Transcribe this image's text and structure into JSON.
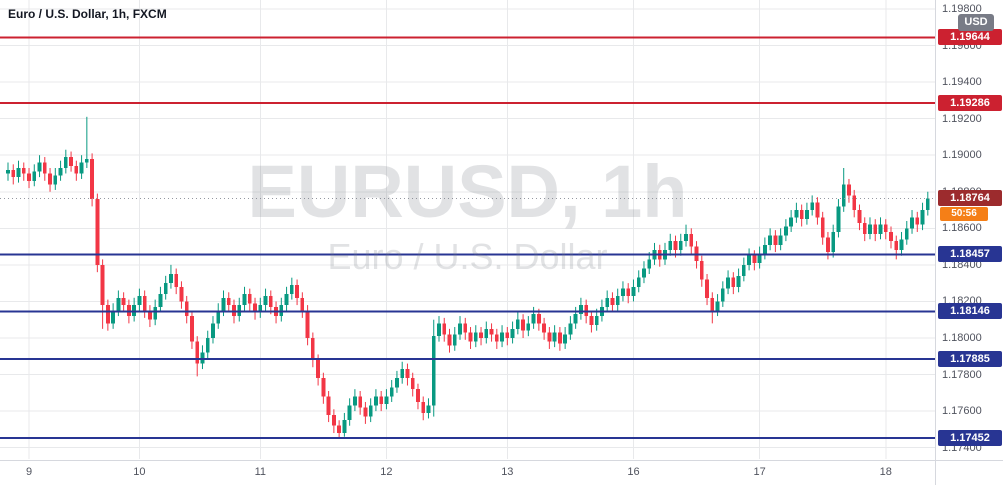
{
  "legend": {
    "title": "Euro / U.S. Dollar, 1h, FXCM"
  },
  "watermark": {
    "title": "EURUSD, 1h",
    "subtitle": "Euro / U.S. Dollar"
  },
  "price_axis": {
    "currency_label": "USD",
    "tick_labels": [
      "1.19800",
      "1.19600",
      "1.19400",
      "1.19200",
      "1.19000",
      "1.18800",
      "1.18600",
      "1.18400",
      "1.18200",
      "1.18000",
      "1.17800",
      "1.17600",
      "1.17400"
    ]
  },
  "levels": [
    {
      "price": 1.19644,
      "label": "1.19644",
      "type": "resistance"
    },
    {
      "price": 1.19286,
      "label": "1.19286",
      "type": "resistance"
    },
    {
      "price": 1.18457,
      "label": "1.18457",
      "type": "support"
    },
    {
      "price": 1.18146,
      "label": "1.18146",
      "type": "support"
    },
    {
      "price": 1.17885,
      "label": "1.17885",
      "type": "support"
    },
    {
      "price": 1.17452,
      "label": "1.17452",
      "type": "support"
    }
  ],
  "last_price": {
    "value": 1.18764,
    "label": "1.18764",
    "countdown": "50:56"
  },
  "colors": {
    "up": "#089981",
    "down": "#f23645",
    "resistance_line": "#cc2130",
    "support_line": "#283593",
    "last_price_badge": "#9c2b2d",
    "countdown_badge": "#f57f17",
    "currency_badge": "#787b86",
    "grid": "#e8e9eb",
    "axis_text": "#50535e",
    "last_price_line": "#9598a1"
  },
  "chart_data": {
    "type": "candlestick",
    "symbol": "EURUSD",
    "interval": "1h",
    "provider": "FXCM",
    "title": "Euro / U.S. Dollar, 1h, FXCM",
    "y_domain": [
      1.17338,
      1.19849
    ],
    "price_ticks": [
      1.198,
      1.196,
      1.194,
      1.192,
      1.19,
      1.188,
      1.186,
      1.184,
      1.182,
      1.18,
      1.178,
      1.176,
      1.174
    ],
    "time_ticks": [
      {
        "label": "9",
        "index": 4
      },
      {
        "label": "10",
        "index": 25
      },
      {
        "label": "11",
        "index": 48
      },
      {
        "label": "12",
        "index": 72
      },
      {
        "label": "13",
        "index": 95
      },
      {
        "label": "16",
        "index": 119
      },
      {
        "label": "17",
        "index": 143
      },
      {
        "label": "18",
        "index": 167
      }
    ],
    "price_scale": 100000,
    "candles": [
      [
        118900,
        118960,
        118860,
        118920
      ],
      [
        118920,
        118950,
        118840,
        118880
      ],
      [
        118880,
        118970,
        118850,
        118930
      ],
      [
        118930,
        118960,
        118860,
        118900
      ],
      [
        118900,
        118930,
        118820,
        118860
      ],
      [
        118860,
        118950,
        118830,
        118910
      ],
      [
        118910,
        119000,
        118880,
        118960
      ],
      [
        118960,
        118990,
        118860,
        118900
      ],
      [
        118900,
        118930,
        118800,
        118840
      ],
      [
        118840,
        118930,
        118810,
        118890
      ],
      [
        118890,
        118970,
        118860,
        118930
      ],
      [
        118930,
        119030,
        118900,
        118990
      ],
      [
        118990,
        119020,
        118910,
        118940
      ],
      [
        118940,
        118970,
        118860,
        118900
      ],
      [
        118900,
        119000,
        118870,
        118960
      ],
      [
        118960,
        119210,
        118930,
        118980
      ],
      [
        118980,
        119010,
        118720,
        118760
      ],
      [
        118760,
        118790,
        118360,
        118400
      ],
      [
        118400,
        118430,
        118050,
        118180
      ],
      [
        118180,
        118210,
        118040,
        118080
      ],
      [
        118080,
        118190,
        118050,
        118150
      ],
      [
        118150,
        118260,
        118120,
        118220
      ],
      [
        118220,
        118250,
        118140,
        118180
      ],
      [
        118180,
        118210,
        118080,
        118120
      ],
      [
        118120,
        118220,
        118090,
        118180
      ],
      [
        118180,
        118270,
        118150,
        118230
      ],
      [
        118230,
        118260,
        118110,
        118150
      ],
      [
        118150,
        118180,
        118060,
        118100
      ],
      [
        118100,
        118210,
        118070,
        118170
      ],
      [
        118170,
        118280,
        118140,
        118240
      ],
      [
        118240,
        118340,
        118210,
        118300
      ],
      [
        118300,
        118400,
        118270,
        118350
      ],
      [
        118350,
        118380,
        118240,
        118280
      ],
      [
        118280,
        118310,
        118160,
        118200
      ],
      [
        118200,
        118230,
        118080,
        118120
      ],
      [
        118120,
        118150,
        117940,
        117980
      ],
      [
        117980,
        118010,
        117790,
        117860
      ],
      [
        117860,
        117960,
        117830,
        117920
      ],
      [
        117920,
        118040,
        117890,
        118000
      ],
      [
        118000,
        118120,
        117970,
        118080
      ],
      [
        118080,
        118190,
        118050,
        118150
      ],
      [
        118150,
        118260,
        118120,
        118220
      ],
      [
        118220,
        118250,
        118140,
        118180
      ],
      [
        118180,
        118210,
        118080,
        118120
      ],
      [
        118120,
        118220,
        118090,
        118180
      ],
      [
        118180,
        118280,
        118150,
        118240
      ],
      [
        118240,
        118270,
        118150,
        118190
      ],
      [
        118190,
        118220,
        118100,
        118140
      ],
      [
        118140,
        118220,
        118110,
        118180
      ],
      [
        118180,
        118270,
        118150,
        118230
      ],
      [
        118230,
        118260,
        118130,
        118170
      ],
      [
        118170,
        118200,
        118080,
        118120
      ],
      [
        118120,
        118220,
        118090,
        118180
      ],
      [
        118180,
        118280,
        118150,
        118240
      ],
      [
        118240,
        118330,
        118210,
        118290
      ],
      [
        118290,
        118320,
        118180,
        118220
      ],
      [
        118220,
        118250,
        118110,
        118150
      ],
      [
        118150,
        118180,
        117960,
        118000
      ],
      [
        118000,
        118030,
        117840,
        117880
      ],
      [
        117880,
        117910,
        117740,
        117780
      ],
      [
        117780,
        117810,
        117640,
        117680
      ],
      [
        117680,
        117710,
        117540,
        117580
      ],
      [
        117580,
        117610,
        117480,
        117520
      ],
      [
        117520,
        117550,
        117450,
        117480
      ],
      [
        117480,
        117590,
        117460,
        117550
      ],
      [
        117550,
        117670,
        117520,
        117630
      ],
      [
        117630,
        117720,
        117600,
        117680
      ],
      [
        117680,
        117710,
        117580,
        117620
      ],
      [
        117620,
        117650,
        117530,
        117570
      ],
      [
        117570,
        117670,
        117540,
        117630
      ],
      [
        117630,
        117720,
        117600,
        117680
      ],
      [
        117680,
        117710,
        117600,
        117640
      ],
      [
        117640,
        117720,
        117610,
        117680
      ],
      [
        117680,
        117770,
        117650,
        117730
      ],
      [
        117730,
        117820,
        117700,
        117780
      ],
      [
        117780,
        117870,
        117750,
        117830
      ],
      [
        117830,
        117860,
        117740,
        117780
      ],
      [
        117780,
        117810,
        117680,
        117720
      ],
      [
        117720,
        117750,
        117610,
        117650
      ],
      [
        117650,
        117680,
        117550,
        117590
      ],
      [
        117590,
        117670,
        117560,
        117630
      ],
      [
        117630,
        118100,
        117570,
        118010
      ],
      [
        118010,
        118120,
        117980,
        118080
      ],
      [
        118080,
        118110,
        117980,
        118020
      ],
      [
        118020,
        118050,
        117920,
        117960
      ],
      [
        117960,
        118060,
        117930,
        118020
      ],
      [
        118020,
        118120,
        117990,
        118080
      ],
      [
        118080,
        118110,
        117990,
        118030
      ],
      [
        118030,
        118060,
        117940,
        117980
      ],
      [
        117980,
        118070,
        117950,
        118030
      ],
      [
        118030,
        118060,
        117960,
        118000
      ],
      [
        118000,
        118090,
        117970,
        118050
      ],
      [
        118050,
        118080,
        117980,
        118020
      ],
      [
        118020,
        118050,
        117940,
        117980
      ],
      [
        117980,
        118070,
        117950,
        118030
      ],
      [
        118030,
        118060,
        117960,
        118000
      ],
      [
        118000,
        118090,
        117970,
        118050
      ],
      [
        118050,
        118140,
        118020,
        118100
      ],
      [
        118100,
        118130,
        118000,
        118040
      ],
      [
        118040,
        118120,
        118010,
        118080
      ],
      [
        118080,
        118170,
        118050,
        118130
      ],
      [
        118130,
        118160,
        118040,
        118080
      ],
      [
        118080,
        118110,
        117990,
        118030
      ],
      [
        118030,
        118060,
        117940,
        117980
      ],
      [
        117980,
        118070,
        117950,
        118030
      ],
      [
        118030,
        118060,
        117930,
        117970
      ],
      [
        117970,
        118060,
        117940,
        118020
      ],
      [
        118020,
        118120,
        117990,
        118080
      ],
      [
        118080,
        118170,
        118050,
        118130
      ],
      [
        118130,
        118220,
        118100,
        118180
      ],
      [
        118180,
        118210,
        118080,
        118120
      ],
      [
        118120,
        118150,
        118030,
        118070
      ],
      [
        118070,
        118160,
        118040,
        118120
      ],
      [
        118120,
        118210,
        118090,
        118170
      ],
      [
        118170,
        118260,
        118140,
        118220
      ],
      [
        118220,
        118250,
        118140,
        118180
      ],
      [
        118180,
        118270,
        118150,
        118230
      ],
      [
        118230,
        118310,
        118200,
        118270
      ],
      [
        118270,
        118300,
        118190,
        118230
      ],
      [
        118230,
        118320,
        118200,
        118280
      ],
      [
        118280,
        118370,
        118250,
        118330
      ],
      [
        118330,
        118420,
        118300,
        118380
      ],
      [
        118380,
        118470,
        118350,
        118430
      ],
      [
        118430,
        118520,
        118400,
        118480
      ],
      [
        118480,
        118510,
        118390,
        118430
      ],
      [
        118430,
        118520,
        118400,
        118480
      ],
      [
        118480,
        118570,
        118450,
        118530
      ],
      [
        118530,
        118560,
        118440,
        118480
      ],
      [
        118480,
        118570,
        118450,
        118530
      ],
      [
        118530,
        118620,
        118500,
        118570
      ],
      [
        118570,
        118600,
        118460,
        118500
      ],
      [
        118500,
        118530,
        118380,
        118420
      ],
      [
        118420,
        118450,
        118280,
        118320
      ],
      [
        118320,
        118350,
        118180,
        118220
      ],
      [
        118220,
        118250,
        118080,
        118150
      ],
      [
        118150,
        118240,
        118120,
        118200
      ],
      [
        118200,
        118310,
        118170,
        118270
      ],
      [
        118270,
        118370,
        118240,
        118330
      ],
      [
        118330,
        118360,
        118240,
        118280
      ],
      [
        118280,
        118380,
        118250,
        118340
      ],
      [
        118340,
        118440,
        118310,
        118400
      ],
      [
        118400,
        118490,
        118370,
        118450
      ],
      [
        118450,
        118480,
        118370,
        118410
      ],
      [
        118410,
        118500,
        118380,
        118460
      ],
      [
        118460,
        118550,
        118430,
        118510
      ],
      [
        118510,
        118600,
        118480,
        118560
      ],
      [
        118560,
        118590,
        118470,
        118510
      ],
      [
        118510,
        118600,
        118480,
        118560
      ],
      [
        118560,
        118650,
        118530,
        118610
      ],
      [
        118610,
        118700,
        118580,
        118660
      ],
      [
        118660,
        118740,
        118630,
        118700
      ],
      [
        118700,
        118730,
        118610,
        118650
      ],
      [
        118650,
        118740,
        118620,
        118700
      ],
      [
        118700,
        118780,
        118670,
        118740
      ],
      [
        118740,
        118770,
        118620,
        118660
      ],
      [
        118660,
        118690,
        118510,
        118550
      ],
      [
        118550,
        118580,
        118430,
        118470
      ],
      [
        118470,
        118620,
        118440,
        118580
      ],
      [
        118580,
        118760,
        118550,
        118720
      ],
      [
        118720,
        118930,
        118690,
        118840
      ],
      [
        118840,
        118870,
        118740,
        118780
      ],
      [
        118780,
        118810,
        118660,
        118700
      ],
      [
        118700,
        118730,
        118590,
        118630
      ],
      [
        118630,
        118660,
        118530,
        118570
      ],
      [
        118570,
        118660,
        118540,
        118620
      ],
      [
        118620,
        118650,
        118530,
        118570
      ],
      [
        118570,
        118660,
        118540,
        118620
      ],
      [
        118620,
        118650,
        118540,
        118580
      ],
      [
        118580,
        118610,
        118490,
        118530
      ],
      [
        118530,
        118560,
        118430,
        118480
      ],
      [
        118480,
        118580,
        118450,
        118540
      ],
      [
        118540,
        118640,
        118510,
        118600
      ],
      [
        118600,
        118700,
        118570,
        118660
      ],
      [
        118660,
        118690,
        118580,
        118620
      ],
      [
        118620,
        118740,
        118590,
        118700
      ],
      [
        118700,
        118800,
        118670,
        118764
      ]
    ]
  }
}
